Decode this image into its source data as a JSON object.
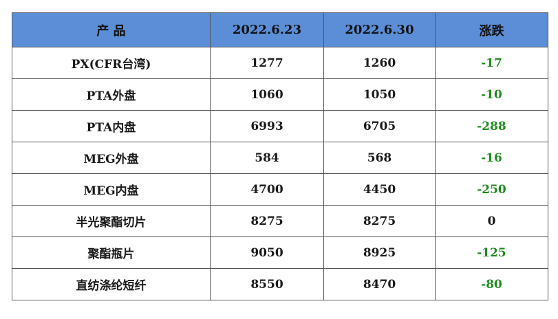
{
  "table": {
    "headers": [
      "产 品",
      "2022.6.23",
      "2022.6.30",
      "涨跌"
    ],
    "rows": [
      {
        "product": "PX(CFR台湾)",
        "d1": "1277",
        "d2": "1260",
        "change": "-17"
      },
      {
        "product": "PTA外盘",
        "d1": "1060",
        "d2": "1050",
        "change": "-10"
      },
      {
        "product": "PTA内盘",
        "d1": "6993",
        "d2": "6705",
        "change": "-288"
      },
      {
        "product": "MEG外盘",
        "d1": "584",
        "d2": "568",
        "change": "-16"
      },
      {
        "product": "MEG内盘",
        "d1": "4700",
        "d2": "4450",
        "change": "-250"
      },
      {
        "product": "半光聚酯切片",
        "d1": "8275",
        "d2": "8275",
        "change": "0"
      },
      {
        "product": "聚酯瓶片",
        "d1": "9050",
        "d2": "8925",
        "change": "-125"
      },
      {
        "product": "直纺涤纶短纤",
        "d1": "8550",
        "d2": "8470",
        "change": "-80"
      }
    ]
  },
  "colors": {
    "header_bg": "#5b8ed6",
    "negative_change": "#1e8a1e",
    "zero_change": "#1a1a1a",
    "border": "#555555"
  }
}
